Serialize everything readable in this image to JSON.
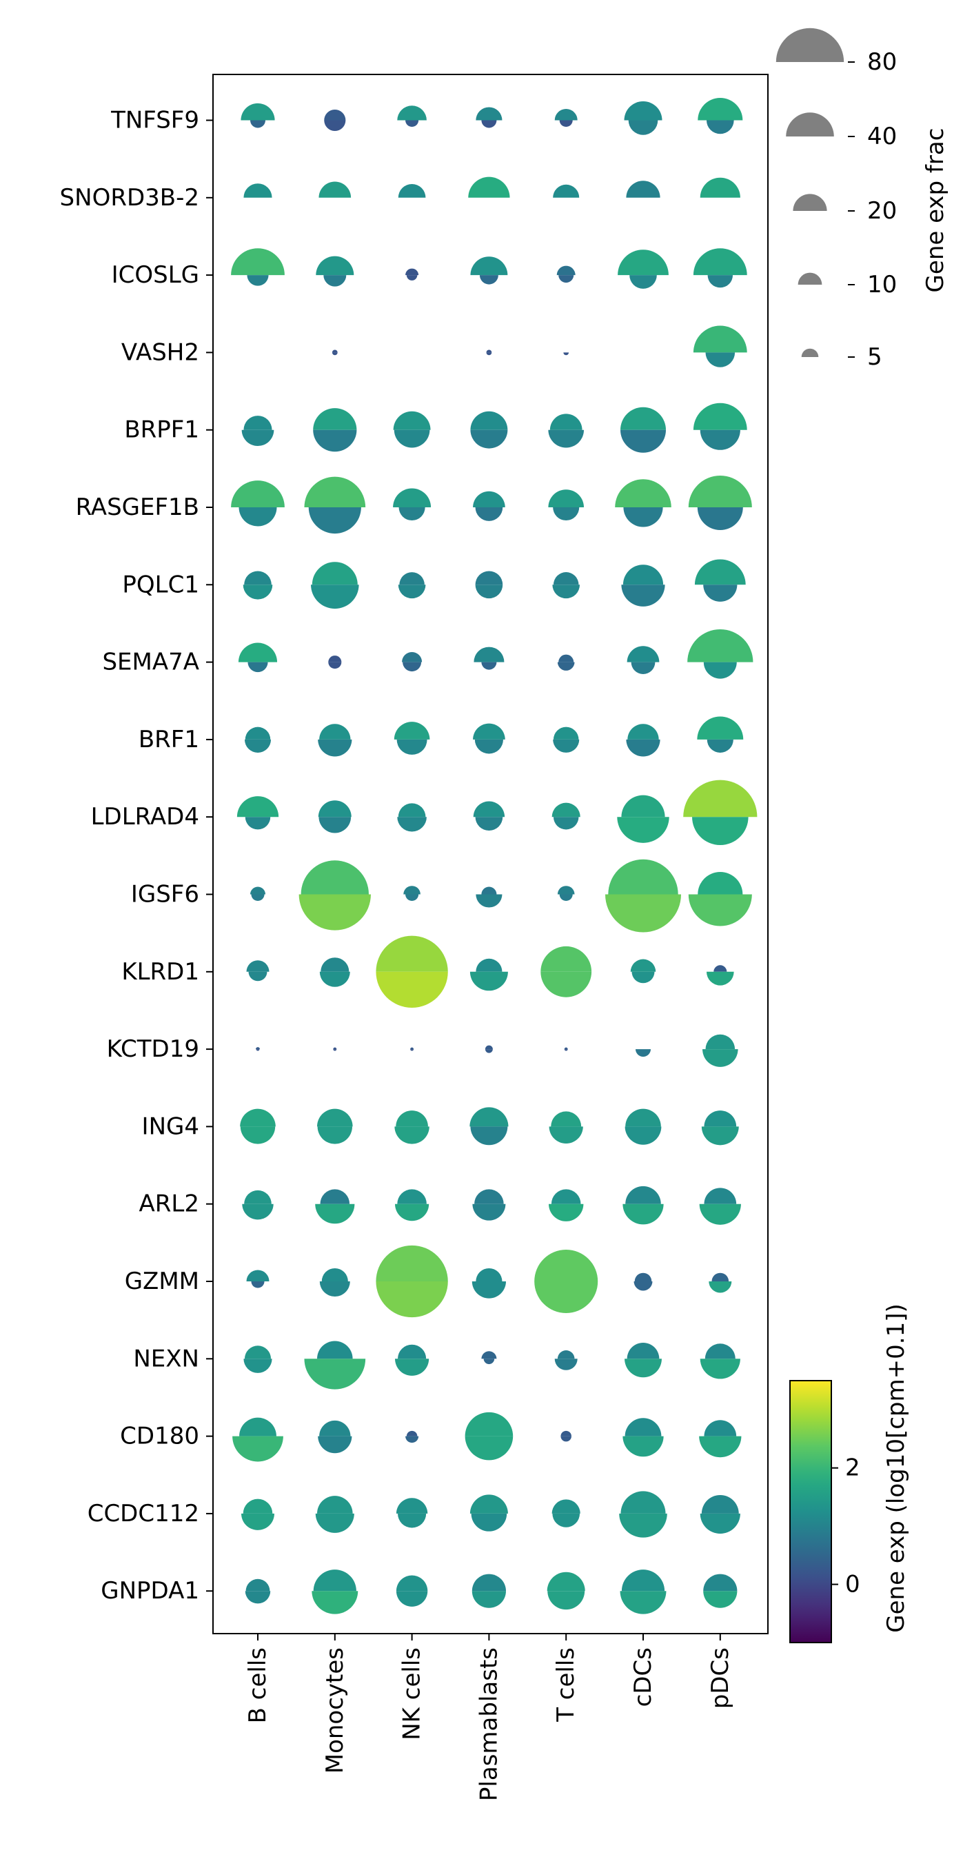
{
  "chart_data": {
    "type": "dotplot",
    "description_note": "",
    "genes": [
      "TNFSF9",
      "SNORD3B-2",
      "ICOSLG",
      "VASH2",
      "BRPF1",
      "RASGEF1B",
      "PQLC1",
      "SEMA7A",
      "BRF1",
      "LDLRAD4",
      "IGSF6",
      "KLRD1",
      "KCTD19",
      "ING4",
      "ARL2",
      "GZMM",
      "NEXN",
      "CD180",
      "CCDC112",
      "GNPDA1"
    ],
    "cell_types": [
      "B cells",
      "Monocytes",
      "NK cells",
      "Plasmablasts",
      "T cells",
      "cDCs",
      "pDCs"
    ],
    "top": {
      "frac": [
        [
          20,
          8,
          15,
          12,
          9,
          25,
          35
        ],
        [
          14,
          18,
          13,
          30,
          12,
          20,
          28
        ],
        [
          50,
          25,
          3,
          24,
          6,
          45,
          50
        ],
        [
          0,
          0.5,
          0,
          0.5,
          0,
          0,
          50
        ],
        [
          14,
          33,
          24,
          24,
          18,
          36,
          50
        ],
        [
          50,
          65,
          25,
          18,
          22,
          55,
          70
        ],
        [
          13,
          36,
          11,
          13,
          11,
          28,
          45
        ],
        [
          26,
          3,
          7,
          16,
          4,
          18,
          75
        ],
        [
          11,
          17,
          22,
          18,
          11,
          17,
          37
        ],
        [
          30,
          19,
          13,
          17,
          14,
          33,
          95
        ],
        [
          4,
          80,
          5,
          4,
          5,
          85,
          35
        ],
        [
          9,
          14,
          90,
          12,
          45,
          11,
          3
        ],
        [
          0.3,
          0.2,
          0.2,
          1,
          0.2,
          0,
          15
        ],
        [
          22,
          22,
          18,
          26,
          16,
          22,
          18
        ],
        [
          13,
          15,
          15,
          15,
          15,
          22,
          18
        ],
        [
          9,
          12,
          90,
          12,
          70,
          5,
          5
        ],
        [
          12,
          22,
          14,
          4,
          5,
          18,
          16
        ],
        [
          24,
          17,
          2,
          40,
          2,
          23,
          18
        ],
        [
          15,
          22,
          17,
          25,
          14,
          35,
          24
        ],
        [
          10,
          32,
          17,
          20,
          25,
          32,
          20
        ]
      ],
      "exp": [
        [
          1.5,
          0.3,
          1.4,
          1.1,
          1.1,
          1.2,
          1.8
        ],
        [
          1.3,
          1.5,
          1.2,
          1.8,
          1.2,
          1.0,
          1.7
        ],
        [
          2.1,
          1.4,
          0.2,
          1.3,
          0.7,
          1.7,
          1.7
        ],
        [
          null,
          0.2,
          null,
          0.2,
          null,
          null,
          2.0
        ],
        [
          1.2,
          1.6,
          1.4,
          1.2,
          1.3,
          1.6,
          1.8
        ],
        [
          2.1,
          2.2,
          1.5,
          1.3,
          1.5,
          2.2,
          2.2
        ],
        [
          1.1,
          1.6,
          1.0,
          0.9,
          1.0,
          1.2,
          1.6
        ],
        [
          1.8,
          0.2,
          0.8,
          1.1,
          0.5,
          1.2,
          2.1
        ],
        [
          1.2,
          1.3,
          1.6,
          1.3,
          1.3,
          1.3,
          1.8
        ],
        [
          1.8,
          1.3,
          1.3,
          1.3,
          1.5,
          1.7,
          2.8
        ],
        [
          1.0,
          2.2,
          1.0,
          0.8,
          1.0,
          2.2,
          1.8
        ],
        [
          1.1,
          1.1,
          2.8,
          1.2,
          2.3,
          1.4,
          0.3
        ],
        [
          0.3,
          0.2,
          0.3,
          0.3,
          0.3,
          null,
          1.4
        ],
        [
          1.7,
          1.5,
          1.6,
          1.4,
          1.6,
          1.4,
          1.3
        ],
        [
          1.4,
          0.9,
          1.3,
          0.9,
          1.3,
          1.1,
          1.1
        ],
        [
          1.2,
          1.2,
          2.5,
          1.2,
          2.4,
          0.5,
          0.5
        ],
        [
          1.4,
          1.2,
          1.2,
          0.5,
          0.9,
          1.1,
          1.1
        ],
        [
          1.5,
          1.1,
          0.3,
          1.7,
          0.3,
          1.2,
          1.2
        ],
        [
          1.6,
          1.4,
          1.3,
          1.4,
          1.3,
          1.4,
          1.1
        ],
        [
          1.1,
          1.4,
          1.3,
          1.1,
          1.6,
          1.3,
          1.1
        ]
      ]
    },
    "bottom": {
      "frac": [
        [
          4,
          8,
          3,
          4,
          3,
          15,
          13
        ],
        [
          0,
          0,
          0,
          0,
          0,
          0,
          0
        ],
        [
          8,
          9,
          2,
          6,
          4,
          13,
          11
        ],
        [
          0,
          0.5,
          0,
          0.5,
          0.5,
          0,
          15
        ],
        [
          18,
          33,
          22,
          24,
          22,
          36,
          28
        ],
        [
          25,
          48,
          12,
          13,
          12,
          27,
          36
        ],
        [
          15,
          40,
          13,
          13,
          13,
          33,
          20
        ],
        [
          7,
          3,
          6,
          4,
          5,
          10,
          19
        ],
        [
          12,
          20,
          16,
          14,
          12,
          20,
          12
        ],
        [
          11,
          18,
          15,
          13,
          11,
          47,
          55
        ],
        [
          3,
          90,
          3,
          12,
          3,
          100,
          70
        ],
        [
          6,
          16,
          90,
          25,
          45,
          9,
          13
        ],
        [
          0.2,
          0.2,
          0.2,
          1,
          0.2,
          4,
          22
        ],
        [
          21,
          21,
          21,
          24,
          20,
          23,
          24
        ],
        [
          17,
          27,
          20,
          19,
          21,
          29,
          30
        ],
        [
          3,
          16,
          90,
          20,
          70,
          6,
          9
        ],
        [
          14,
          65,
          20,
          2,
          9,
          24,
          28
        ],
        [
          45,
          20,
          3,
          40,
          2,
          29,
          31
        ],
        [
          19,
          26,
          14,
          22,
          13,
          40,
          28
        ],
        [
          11,
          37,
          17,
          20,
          24,
          37,
          20
        ]
      ],
      "exp": [
        [
          0.5,
          0.2,
          0.3,
          0.2,
          0.2,
          1.0,
          0.9
        ],
        [
          null,
          null,
          null,
          null,
          null,
          null,
          null
        ],
        [
          1.0,
          0.9,
          0.2,
          0.6,
          0.5,
          1.1,
          1.0
        ],
        [
          null,
          0.2,
          null,
          0.2,
          0.2,
          null,
          1.1
        ],
        [
          1.1,
          0.9,
          1.1,
          0.9,
          1.0,
          0.8,
          1.0
        ],
        [
          1.1,
          0.9,
          1.0,
          0.8,
          1.0,
          0.9,
          0.8
        ],
        [
          1.3,
          1.3,
          1.1,
          1.0,
          1.1,
          0.9,
          0.9
        ],
        [
          0.8,
          0.2,
          0.5,
          0.5,
          0.5,
          0.9,
          1.3
        ],
        [
          1.1,
          1.0,
          1.1,
          1.0,
          1.1,
          0.9,
          1.0
        ],
        [
          1.1,
          1.0,
          1.1,
          1.0,
          1.1,
          1.8,
          1.8
        ],
        [
          0.9,
          2.6,
          0.9,
          1.0,
          0.9,
          2.5,
          2.3
        ],
        [
          1.1,
          1.3,
          3.0,
          1.5,
          2.3,
          1.3,
          1.7
        ],
        [
          0.2,
          0.2,
          0.2,
          0.3,
          0.2,
          0.8,
          1.5
        ],
        [
          1.7,
          1.5,
          1.6,
          1.0,
          1.5,
          1.3,
          1.5
        ],
        [
          1.4,
          1.7,
          1.7,
          1.0,
          1.8,
          1.7,
          1.7
        ],
        [
          0.5,
          1.1,
          2.6,
          1.2,
          2.4,
          0.5,
          1.6
        ],
        [
          1.3,
          2.0,
          1.5,
          0.5,
          0.9,
          1.6,
          1.7
        ],
        [
          2.0,
          1.0,
          0.5,
          1.7,
          0.3,
          1.6,
          1.7
        ],
        [
          1.6,
          1.4,
          1.3,
          1.2,
          1.3,
          1.5,
          1.3
        ],
        [
          1.1,
          1.9,
          1.3,
          1.4,
          1.6,
          1.6,
          1.7
        ]
      ]
    },
    "size_legend": {
      "title": "Gene exp frac",
      "values": [
        80,
        40,
        20,
        10,
        5
      ],
      "labels": [
        "80",
        "40",
        "20",
        "10",
        "5"
      ]
    },
    "colorbar": {
      "title": "Gene exp (log10[cpm+0.1])",
      "min": -1,
      "max": 3.5,
      "ticks": [
        0,
        2
      ],
      "tick_labels": [
        "0",
        "2"
      ],
      "colormap": "viridis"
    }
  }
}
